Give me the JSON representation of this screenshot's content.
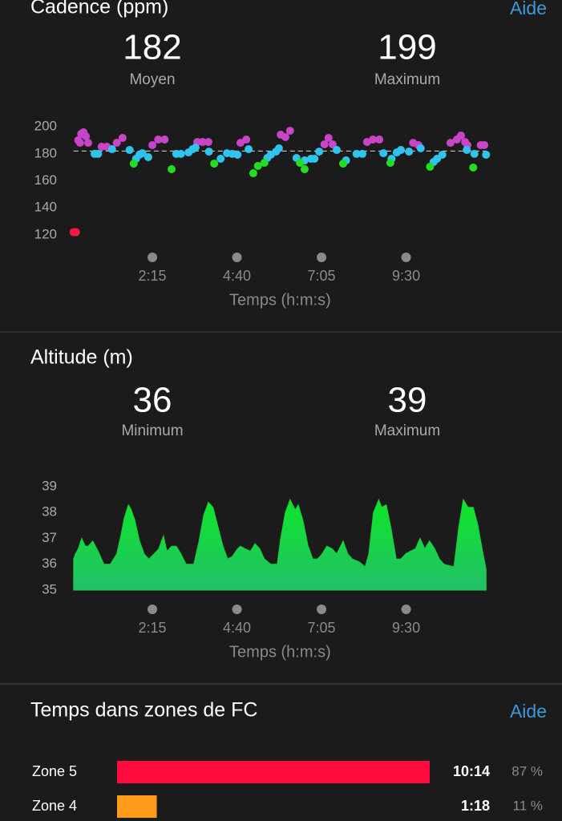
{
  "chart_data": [
    {
      "type": "scatter",
      "title": "Cadence (ppm)",
      "help": "Aide",
      "stats": [
        {
          "value": 182,
          "label": "Moyen"
        },
        {
          "value": 199,
          "label": "Maximum"
        }
      ],
      "average_line": true,
      "xlabel": "Temps (h:m:s)",
      "xlim": [
        0,
        708
      ],
      "xticks": [
        {
          "value": 135,
          "label": "2:15"
        },
        {
          "value": 280,
          "label": "4:40"
        },
        {
          "value": 425,
          "label": "7:05"
        },
        {
          "value": 570,
          "label": "9:30"
        }
      ],
      "ylim": [
        115,
        205
      ],
      "yticks": [
        120,
        140,
        160,
        180,
        200
      ],
      "series": [
        {
          "color": "#ff1744",
          "x": [
            0,
            4
          ],
          "values": [
            122,
            122
          ]
        },
        {
          "color": "#c845c8",
          "x": [
            8,
            13,
            17,
            21,
            25,
            11,
            48,
            57,
            74,
            84,
            135,
            145,
            156,
            212,
            221,
            231,
            286,
            296,
            355,
            363,
            371,
            430,
            437,
            444,
            503,
            513,
            524,
            582,
            591,
            646,
            657,
            664,
            671,
            675,
            698,
            704
          ],
          "values": [
            190,
            194.7,
            195.9,
            192.9,
            188.1,
            188.1,
            185.2,
            185.2,
            188.1,
            191.7,
            186.4,
            190.5,
            190.5,
            188.7,
            188.7,
            188.7,
            188.1,
            190.5,
            194.1,
            192.3,
            197,
            187,
            191.7,
            187,
            188.7,
            190.5,
            190.5,
            188.1,
            186.4,
            188.1,
            190.5,
            193.5,
            188.7,
            186.4,
            186.4,
            186.4
          ]
        },
        {
          "color": "#2ec4ee",
          "x": [
            36,
            42,
            66,
            96,
            107,
            113,
            118,
            128,
            176,
            184,
            197,
            204,
            209,
            232,
            252,
            263,
            272,
            281,
            300,
            332,
            338,
            347,
            352,
            382,
            396,
            407,
            413,
            421,
            451,
            467,
            485,
            495,
            531,
            545,
            554,
            561,
            575,
            595,
            617,
            623,
            632,
            674,
            687,
            707
          ],
          "values": [
            179.9,
            179.9,
            183.4,
            182.8,
            176.3,
            179.3,
            180.4,
            177.5,
            179.9,
            179.9,
            181,
            183.4,
            184.6,
            181.6,
            176.3,
            180.4,
            179.9,
            179.3,
            183.4,
            176.9,
            179.3,
            181.6,
            184,
            176.9,
            175.1,
            176.3,
            176.3,
            181.6,
            182.8,
            175.1,
            179.9,
            179.9,
            180.4,
            176.3,
            181,
            182.8,
            181.6,
            184,
            173.9,
            176.3,
            179.3,
            182.8,
            179.9,
            179.3
          ]
        },
        {
          "color": "#22dd22",
          "x": [
            103,
            168,
            241,
            308,
            316,
            327,
            388,
            396,
            462,
            543,
            611,
            685
          ],
          "values": [
            172.7,
            168.6,
            172.7,
            165.6,
            171,
            173.3,
            173.3,
            168.6,
            172.7,
            173.3,
            170.4,
            169.8
          ]
        }
      ]
    },
    {
      "type": "area",
      "title": "Altitude (m)",
      "stats": [
        {
          "value": 36,
          "label": "Minimum"
        },
        {
          "value": 39,
          "label": "Maximum"
        }
      ],
      "xlabel": "Temps (h:m:s)",
      "xlim": [
        0,
        708
      ],
      "xticks": [
        {
          "value": 135,
          "label": "2:15"
        },
        {
          "value": 280,
          "label": "4:40"
        },
        {
          "value": 425,
          "label": "7:05"
        },
        {
          "value": 570,
          "label": "9:30"
        }
      ],
      "ylim": [
        35,
        39
      ],
      "yticks": [
        35,
        36,
        37,
        38,
        39
      ],
      "color": "#18d03a",
      "x": [
        0,
        3,
        8,
        14,
        20,
        25,
        33,
        42,
        52,
        63,
        74,
        80,
        87,
        94,
        99,
        105,
        113,
        121,
        129,
        138,
        146,
        154,
        160,
        168,
        176,
        184,
        193,
        206,
        215,
        223,
        231,
        239,
        248,
        256,
        264,
        272,
        281,
        286,
        294,
        303,
        311,
        319,
        327,
        338,
        349,
        355,
        363,
        371,
        380,
        385,
        393,
        402,
        410,
        418,
        426,
        434,
        443,
        451,
        462,
        470,
        478,
        489,
        500,
        506,
        514,
        523,
        528,
        536,
        544,
        553,
        561,
        569,
        577,
        586,
        594,
        602,
        610,
        619,
        627,
        635,
        652,
        660,
        668,
        676,
        685,
        693,
        701,
        707
      ],
      "values": [
        36.2,
        36.4,
        36.6,
        37.0,
        36.7,
        36.7,
        36.9,
        36.5,
        36.0,
        36.0,
        36.4,
        37.0,
        37.8,
        38.3,
        38.1,
        37.7,
        36.9,
        36.4,
        36.2,
        36.4,
        36.6,
        37.1,
        36.5,
        36.7,
        36.7,
        36.4,
        36.0,
        36.0,
        36.9,
        37.9,
        38.4,
        38.2,
        37.4,
        36.7,
        36.2,
        36.3,
        36.6,
        36.7,
        36.6,
        36.5,
        36.8,
        36.6,
        36.2,
        36.0,
        36.0,
        37.0,
        38.0,
        38.5,
        38.1,
        38.3,
        37.7,
        36.7,
        36.2,
        36.2,
        36.4,
        36.7,
        36.6,
        36.4,
        36.9,
        36.4,
        36.2,
        36.1,
        35.9,
        36.4,
        38.0,
        38.5,
        38.2,
        38.3,
        37.4,
        36.2,
        36.2,
        36.4,
        36.5,
        36.6,
        37.0,
        36.6,
        36.9,
        36.6,
        36.2,
        36.0,
        35.9,
        37.4,
        38.5,
        38.2,
        38.2,
        37.5,
        36.5,
        35.8
      ]
    },
    {
      "type": "hbar",
      "title": "Temps dans zones de FC",
      "help": "Aide",
      "categories": [
        "Zone 5",
        "Zone 4"
      ],
      "colors": [
        "#ff0a3c",
        "#ff9a1a"
      ],
      "values": [
        614,
        78
      ],
      "value_labels": [
        "10:14",
        "1:18"
      ],
      "xlim": [
        0,
        614
      ],
      "shares": [
        87,
        11
      ],
      "share_labels": [
        "87 %",
        "11 %"
      ]
    }
  ]
}
